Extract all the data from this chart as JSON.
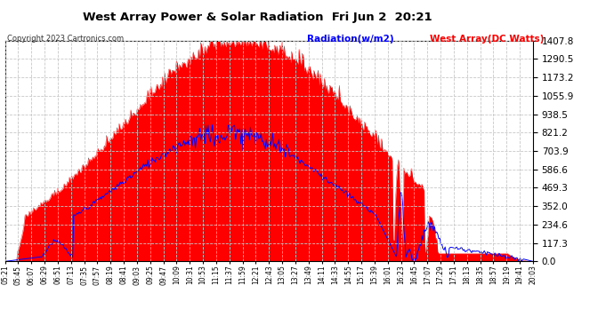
{
  "title": "West Array Power & Solar Radiation  Fri Jun 2  20:21",
  "copyright": "Copyright 2023 Cartronics.com",
  "legend_radiation": "Radiation(w/m2)",
  "legend_west": "West Array(DC Watts)",
  "y_max": 1407.8,
  "y_min": 0.0,
  "y_ticks": [
    0.0,
    117.3,
    234.6,
    352.0,
    469.3,
    586.6,
    703.9,
    821.2,
    938.5,
    1055.9,
    1173.2,
    1290.5,
    1407.8
  ],
  "radiation_color": "#FF0000",
  "west_color": "#0000FF",
  "background_color": "#FFFFFF",
  "grid_color": "#C8C8C8",
  "title_color": "#000000",
  "copyright_color": "#000000",
  "radiation_legend_color": "#0000FF",
  "west_legend_color": "#FF0000",
  "x_tick_labels": [
    "05:21",
    "05:45",
    "06:07",
    "06:29",
    "06:51",
    "07:13",
    "07:35",
    "07:57",
    "08:19",
    "08:41",
    "09:03",
    "09:25",
    "09:47",
    "10:09",
    "10:31",
    "10:53",
    "11:15",
    "11:37",
    "11:59",
    "12:21",
    "12:43",
    "13:05",
    "13:27",
    "13:49",
    "14:11",
    "14:33",
    "14:55",
    "15:17",
    "15:39",
    "16:01",
    "16:23",
    "16:45",
    "17:07",
    "17:29",
    "17:51",
    "18:13",
    "18:35",
    "18:57",
    "19:19",
    "19:41",
    "20:03"
  ]
}
